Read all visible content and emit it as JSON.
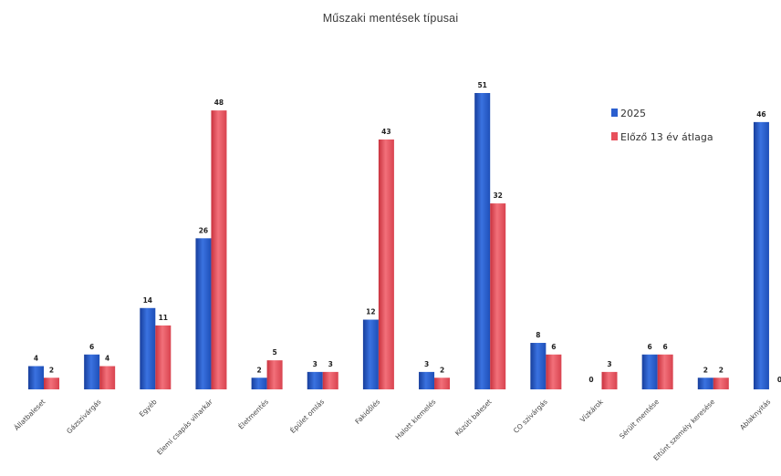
{
  "chart_data": {
    "type": "bar",
    "title": "Műszaki mentések típusai",
    "categories": [
      "Állatbaleset",
      "Gázszivárgás",
      "Egyéb",
      "Elemi csapás viharkár",
      "Életmentés",
      "Épület omlás",
      "Fakidőlés",
      "Halott kiemelés",
      "Közúti baleset",
      "CO szivárgás",
      "Vízkárok",
      "Sérült mentése",
      "Eltűnt személy keresése",
      "Ablaknyitás"
    ],
    "series": [
      {
        "name": "2025",
        "color": "#2b5fcf",
        "values": [
          4,
          6,
          14,
          26,
          2,
          3,
          12,
          3,
          51,
          8,
          0,
          6,
          2,
          46
        ]
      },
      {
        "name": "Előző 13 év átlaga",
        "color": "#e8505b",
        "values": [
          2,
          4,
          11,
          48,
          5,
          3,
          43,
          2,
          32,
          6,
          3,
          6,
          2,
          0
        ]
      }
    ],
    "ylim": [
      0,
      55
    ],
    "grid": false,
    "legend_position": "top-right"
  }
}
